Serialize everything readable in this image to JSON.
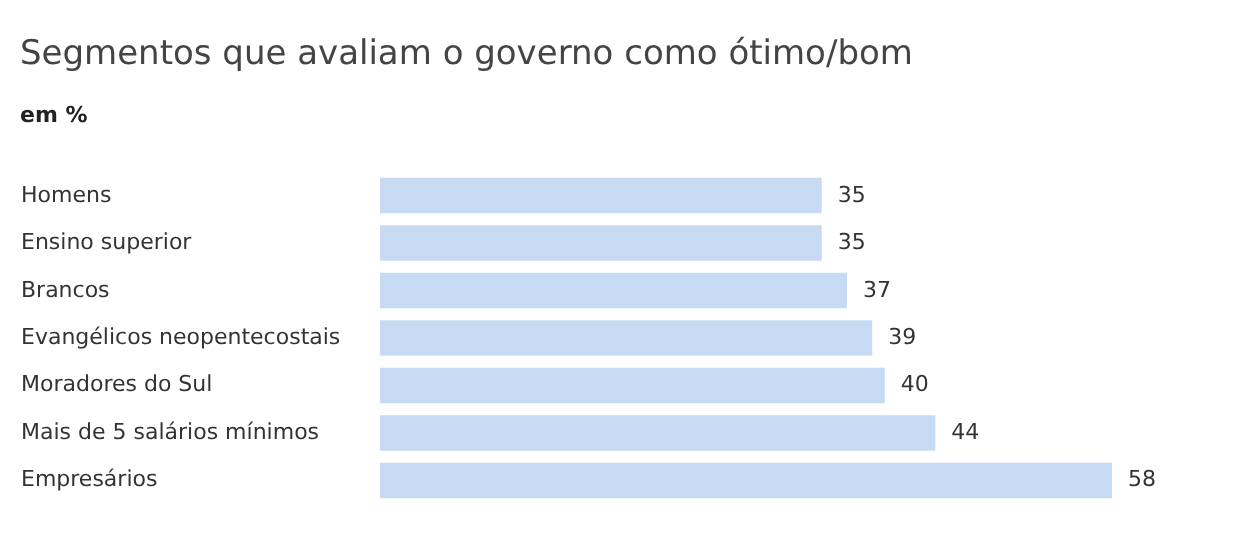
{
  "chart_data": {
    "type": "bar",
    "orientation": "horizontal",
    "title": "Segmentos que avaliam o governo como ótimo/bom",
    "subtitle": "em %",
    "categories": [
      "Homens",
      "Ensino superior",
      "Brancos",
      "Evangélicos neopentecostais",
      "Moradores do Sul",
      "Mais de 5 salários mínimos",
      "Empresários"
    ],
    "values": [
      35,
      35,
      37,
      39,
      40,
      44,
      58
    ],
    "color": "#c6daf3",
    "data_labels": true
  }
}
